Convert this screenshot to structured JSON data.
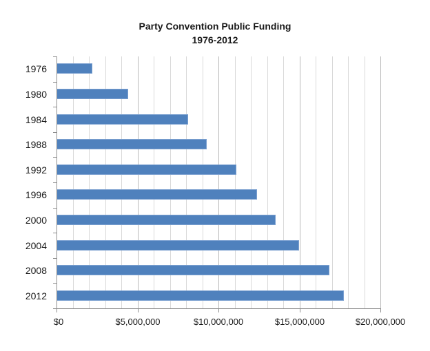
{
  "chart_data": {
    "type": "bar",
    "orientation": "horizontal",
    "title": "Party Convention Public Funding",
    "subtitle": "1976-2012",
    "xlabel": "",
    "ylabel": "",
    "categories": [
      "1976",
      "1980",
      "1984",
      "1988",
      "1992",
      "1996",
      "2000",
      "2004",
      "2008",
      "2012"
    ],
    "values": [
      2180000,
      4400000,
      8080000,
      9220000,
      11050000,
      12360000,
      13510000,
      14920000,
      16820000,
      17690000
    ],
    "xlim": [
      0,
      20000000
    ],
    "x_ticks": [
      "$0",
      "$5,000,000",
      "$10,000,000",
      "$15,000,000",
      "$20,000,000"
    ],
    "grid": {
      "vertical_major": true,
      "vertical_minor": true,
      "minor_step": 1000000
    },
    "legend": null,
    "bar_color": "#4f81bd"
  },
  "header": {
    "title": "Party Convention Public Funding",
    "subtitle": "1976-2012"
  }
}
